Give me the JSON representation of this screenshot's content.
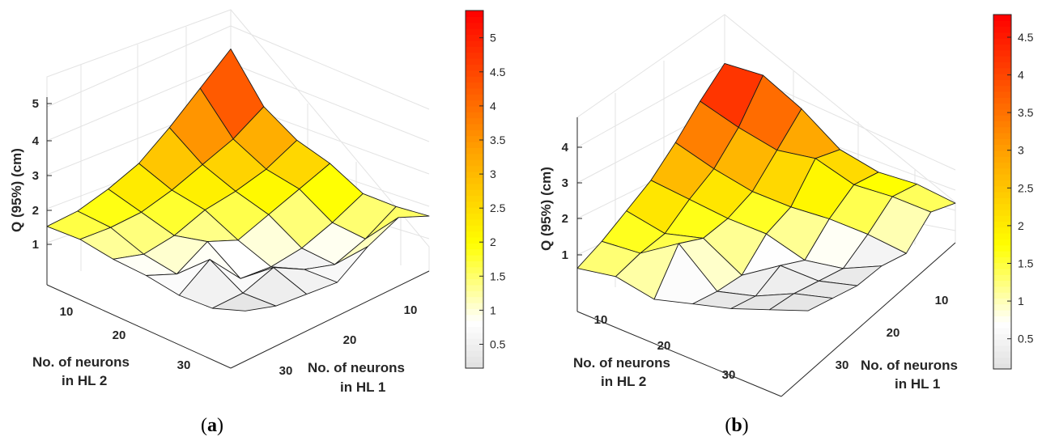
{
  "panels": [
    {
      "id": "a",
      "label_open": "(",
      "label_letter": "a",
      "label_close": ")",
      "zlabel": "Q (95%) (cm)",
      "xlabel_line1": "No. of neurons",
      "xlabel_line2": "in HL 2",
      "ylabel_line1": "No. of neurons",
      "ylabel_line2": "in HL 1",
      "z_ticks": [
        "1",
        "2",
        "3",
        "4",
        "5"
      ],
      "x_ticks": [
        "10",
        "20",
        "30"
      ],
      "y_ticks": [
        "10",
        "20",
        "30"
      ],
      "colorbar_ticks": [
        "0.5",
        "1",
        "1.5",
        "2",
        "2.5",
        "3",
        "3.5",
        "4",
        "4.5",
        "5"
      ]
    },
    {
      "id": "b",
      "label_open": "(",
      "label_letter": "b",
      "label_close": ")",
      "zlabel": "Q (95%) (cm)",
      "xlabel_line1": "No. of neurons",
      "xlabel_line2": "in HL 2",
      "ylabel_line1": "No. of neurons",
      "ylabel_line2": "in HL 1",
      "z_ticks": [
        "1",
        "2",
        "3",
        "4"
      ],
      "x_ticks": [
        "10",
        "20",
        "30"
      ],
      "y_ticks": [
        "10",
        "20",
        "30"
      ],
      "colorbar_ticks": [
        "0.5",
        "1",
        "1.5",
        "2",
        "2.5",
        "3",
        "3.5",
        "4",
        "4.5"
      ]
    }
  ],
  "chart_data": [
    {
      "type": "surface",
      "x_name": "No. of neurons in HL 2",
      "y_name": "No. of neurons in HL 1",
      "z_name": "Q (95%) (cm)",
      "x": [
        5,
        10,
        15,
        20,
        25,
        30,
        35
      ],
      "y": [
        5,
        10,
        15,
        20,
        25,
        30,
        35
      ],
      "zlim": [
        0,
        5.4
      ],
      "clim": [
        0.15,
        5.4
      ],
      "colormap": [
        "#e0e0e0",
        "#ffffff",
        "#ffff00",
        "#ffa500",
        "#ff0000"
      ],
      "z": [
        [
          5.4,
          3.9,
          3.1,
          2.6,
          1.9,
          1.7,
          1.6
        ],
        [
          4.5,
          3.2,
          2.5,
          2.1,
          1.3,
          1.0,
          1.8
        ],
        [
          3.6,
          2.7,
          2.1,
          1.6,
          0.8,
          0.5,
          1.2
        ],
        [
          2.8,
          2.2,
          1.8,
          1.1,
          0.5,
          0.6,
          0.4
        ],
        [
          2.3,
          1.8,
          1.3,
          1.3,
          0.4,
          0.9,
          0.3
        ],
        [
          1.9,
          1.6,
          1.0,
          0.6,
          1.2,
          0.4,
          0.2
        ],
        [
          1.7,
          1.5,
          1.1,
          0.8,
          0.4,
          0.2,
          0.3
        ]
      ]
    },
    {
      "type": "surface",
      "x_name": "No. of neurons in HL 2",
      "y_name": "No. of neurons in HL 1",
      "z_name": "Q (95%) (cm)",
      "x": [
        5,
        10,
        15,
        20,
        25,
        30,
        35
      ],
      "y": [
        5,
        10,
        15,
        20,
        25,
        30,
        35
      ],
      "zlim": [
        0,
        4.8
      ],
      "clim": [
        0.1,
        4.8
      ],
      "colormap": [
        "#e0e0e0",
        "#ffffff",
        "#ffff00",
        "#ffa500",
        "#ff0000"
      ],
      "z": [
        [
          4.8,
          4.5,
          3.6,
          2.5,
          1.9,
          1.6,
          1.1
        ],
        [
          4.1,
          3.4,
          2.8,
          2.6,
          1.9,
          1.6,
          1.2
        ],
        [
          3.3,
          2.6,
          2.0,
          1.6,
          1.3,
          0.9,
          0.4
        ],
        [
          2.6,
          2.1,
          1.6,
          1.2,
          0.5,
          0.3,
          0.4
        ],
        [
          2.1,
          1.5,
          1.4,
          0.4,
          0.7,
          0.3,
          0.2
        ],
        [
          1.6,
          1.3,
          1.6,
          0.3,
          0.2,
          0.3,
          0.2
        ],
        [
          1.2,
          1.0,
          0.4,
          0.3,
          0.2,
          0.2,
          0.2
        ]
      ]
    }
  ]
}
